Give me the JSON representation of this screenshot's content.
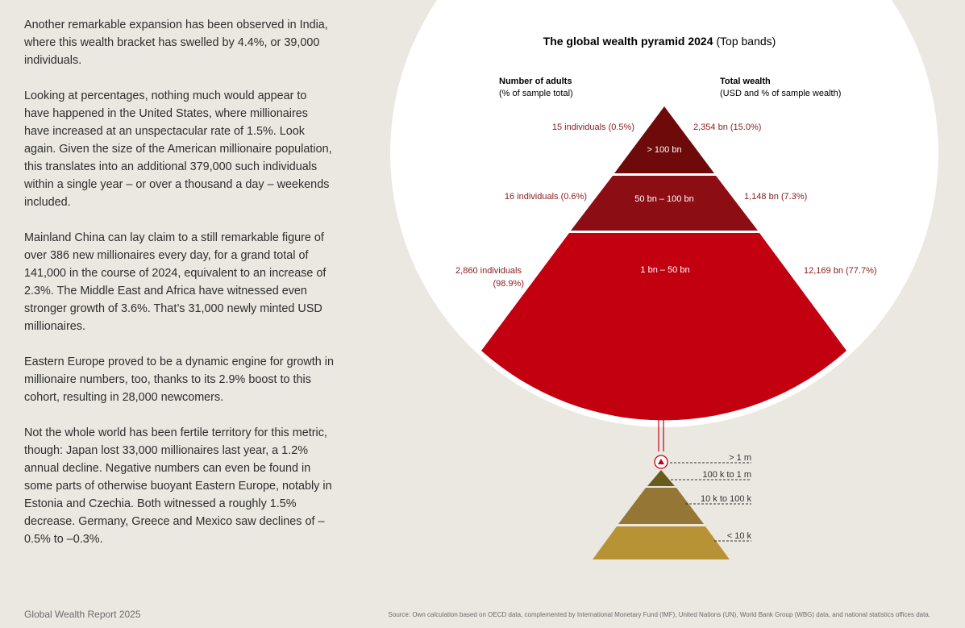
{
  "article": {
    "paragraphs": [
      "Another remarkable expansion has been observed in India, where this wealth bracket has swelled by 4.4%, or 39,000 individuals.",
      "Looking at percentages, nothing much would appear to have happened in the United States, where millionaires have increased at an unspectacular rate of 1.5%. Look again. Given the size of the American millionaire population, this translates into an additional 379,000 such individuals within a single year – or over a thousand a day – weekends included.",
      "Mainland China can lay claim to a still remarkable figure of over 386 new millionaires every day, for a grand total of 141,000 in the course of 2024, equivalent to an increase of 2.3%. The Middle East and Africa have witnessed even stronger growth of 3.6%. That’s 31,000 newly minted USD millionaires.",
      "Eastern Europe proved to be a dynamic engine for growth in millionaire numbers, too, thanks to its 2.9% boost to this cohort, resulting in 28,000 newcomers.",
      "Not the whole world has been fertile territory for this metric, though: Japan lost 33,000 millionaires last year, a 1.2% annual decline. Negative numbers can even be found in some parts of otherwise buoyant Eastern Europe, notably in Estonia and Czechia. Both witnessed a roughly 1.5% decrease. Germany, Greece and Mexico saw declines of –0.5% to –0.3%."
    ]
  },
  "chart_data": {
    "type": "pyramid",
    "title": "The global wealth pyramid 2024",
    "subtitle": "(Top bands)",
    "left_header": "Number of adults",
    "left_subheader": "(% of sample total)",
    "right_header": "Total wealth",
    "right_subheader": "(USD and % of sample wealth)",
    "bands": [
      {
        "label": "> 100 bn",
        "adults": "15 individuals (0.5%)",
        "wealth": "2,354 bn (15.0%)",
        "adults_pct": 0.5,
        "wealth_usd_bn": 2354,
        "wealth_pct": 15.0,
        "color": "#6e0a0a"
      },
      {
        "label": "50 bn – 100 bn",
        "adults": "16 individuals (0.6%)",
        "wealth": "1,148 bn (7.3%)",
        "adults_pct": 0.6,
        "wealth_usd_bn": 1148,
        "wealth_pct": 7.3,
        "color": "#8c0e14"
      },
      {
        "label": "1 bn – 50 bn",
        "adults_line1": "2,860 individuals",
        "adults_line2": "(98.9%)",
        "wealth": "12,169 bn (77.7%)",
        "adults_pct": 98.9,
        "wealth_usd_bn": 12169,
        "wealth_pct": 77.7,
        "color": "#c20010"
      }
    ],
    "base_pyramid": {
      "levels": [
        {
          "label": "> 1 m",
          "color": "#c20010"
        },
        {
          "label": "100 k to 1 m",
          "color": "#6b5a1e"
        },
        {
          "label": "10 k to 100 k",
          "color": "#957634"
        },
        {
          "label": "< 10 k",
          "color": "#b89336"
        }
      ]
    }
  },
  "footer": {
    "left": "Global Wealth Report 2025",
    "source": "Source: Own calculation based on OECD data, complemented by International Monetary Fund (IMF), United Nations (UN), World Bank Group (WBG) data, and national statistics offices data."
  }
}
